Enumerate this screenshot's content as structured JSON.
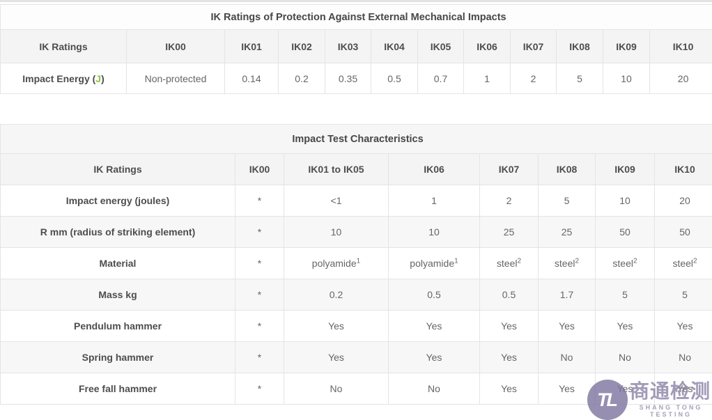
{
  "colors": {
    "border": "#e4e4e4",
    "header_bg": "#f4f4f4",
    "stripe_bg": "#f7f7f7",
    "label_text": "#4d4d4d",
    "cell_text": "#656565",
    "joule_green": "#93c03d",
    "watermark_purple": "#8d85a8"
  },
  "table1": {
    "title": "IK Ratings of Protection Against External Mechanical Impacts",
    "columns": [
      "IK Ratings",
      "IK00",
      "IK01",
      "IK02",
      "IK03",
      "IK04",
      "IK05",
      "IK06",
      "IK07",
      "IK08",
      "IK09",
      "IK10"
    ],
    "rows": [
      {
        "label_prefix": "Impact Energy (",
        "label_unit": "J",
        "label_suffix": ")",
        "cells": [
          "Non-protected",
          "0.14",
          "0.2",
          "0.35",
          "0.5",
          "0.7",
          "1",
          "2",
          "5",
          "10",
          "20"
        ]
      }
    ]
  },
  "table2": {
    "title": "Impact Test Characteristics",
    "columns": [
      "IK Ratings",
      "IK00",
      "IK01 to IK05",
      "IK06",
      "IK07",
      "IK08",
      "IK09",
      "IK10"
    ],
    "rows": [
      {
        "label": "Impact energy (joules)",
        "cells": [
          "*",
          "<1",
          "1",
          "2",
          "5",
          "10",
          "20"
        ]
      },
      {
        "label": "R mm (radius of striking element)",
        "cells": [
          "*",
          "10",
          "10",
          "25",
          "25",
          "50",
          "50"
        ]
      },
      {
        "label": "Material",
        "cells": [
          "*",
          {
            "t": "polyamide",
            "sup": "1"
          },
          {
            "t": "polyamide",
            "sup": "1"
          },
          {
            "t": "steel",
            "sup": "2"
          },
          {
            "t": "steel",
            "sup": "2"
          },
          {
            "t": "steel",
            "sup": "2"
          },
          {
            "t": "steel",
            "sup": "2"
          }
        ]
      },
      {
        "label": "Mass kg",
        "cells": [
          "*",
          "0.2",
          "0.5",
          "0.5",
          "1.7",
          "5",
          "5"
        ]
      },
      {
        "label": "Pendulum hammer",
        "cells": [
          "*",
          "Yes",
          "Yes",
          "Yes",
          "Yes",
          "Yes",
          "Yes"
        ]
      },
      {
        "label": "Spring hammer",
        "cells": [
          "*",
          "Yes",
          "Yes",
          "Yes",
          "No",
          "No",
          "No"
        ]
      },
      {
        "label": "Free fall hammer",
        "cells": [
          "*",
          "No",
          "No",
          "Yes",
          "Yes",
          "Yes",
          "Yes"
        ]
      }
    ]
  },
  "watermark": {
    "monogram": "TL",
    "cn": "商通检测",
    "en": "SHANG TONG TESTING"
  }
}
